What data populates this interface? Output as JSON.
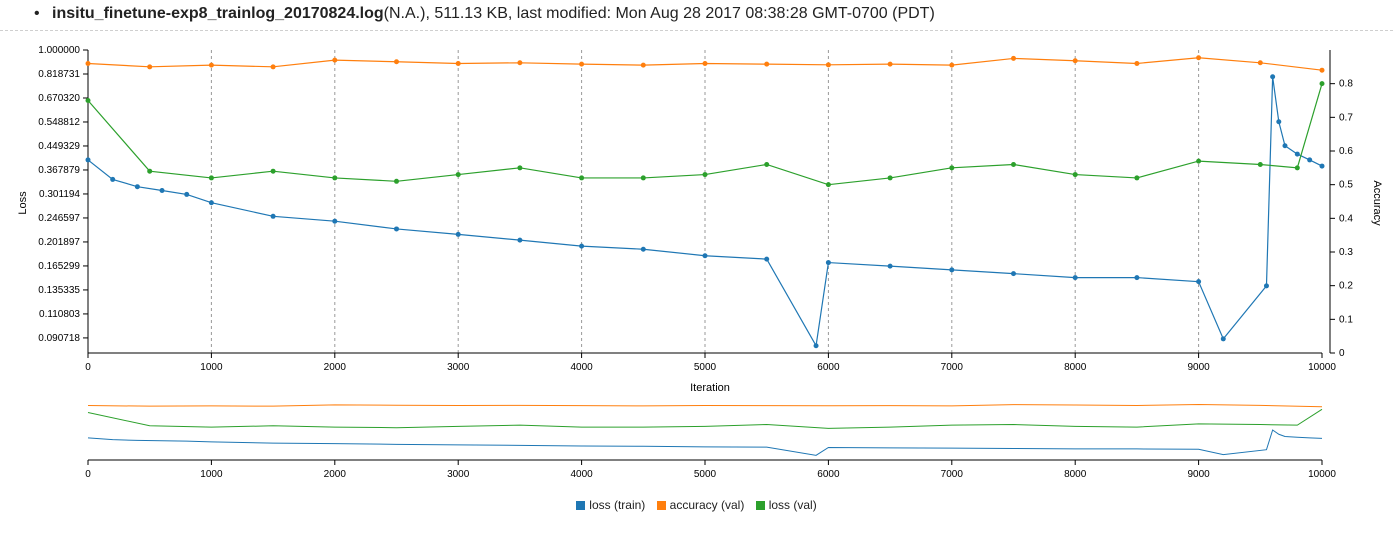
{
  "header": {
    "bullet": "•",
    "filename": "insitu_finetune-exp8_trainlog_20170824.log",
    "meta": "(N.A.), 511.13 KB, last modified: Mon Aug 28 2017 08:38:28 GMT-0700 (PDT)"
  },
  "chart_data": [
    {
      "type": "line",
      "title": "",
      "xlabel": "Iteration",
      "ylabel": "Loss",
      "y2label": "Accuracy",
      "xlim": [
        0,
        10000
      ],
      "x_ticks": [
        0,
        1000,
        2000,
        3000,
        4000,
        5000,
        6000,
        7000,
        8000,
        9000,
        10000
      ],
      "y_scale": "log",
      "ylim": [
        0.08,
        1.0
      ],
      "y_ticks": [
        "1.000000",
        "0.818731",
        "0.670320",
        "0.548812",
        "0.449329",
        "0.367879",
        "0.301194",
        "0.246597",
        "0.201897",
        "0.165299",
        "0.135335",
        "0.110803",
        "0.090718"
      ],
      "y2lim": [
        0,
        0.9
      ],
      "y2_ticks": [
        0,
        0.1,
        0.2,
        0.3,
        0.4,
        0.5,
        0.6,
        0.7,
        0.8
      ],
      "grid": "vertical dashed at x ticks",
      "series": [
        {
          "name": "loss (train)",
          "axis": "left",
          "color": "#1f77b4",
          "x": [
            0,
            200,
            400,
            600,
            800,
            1000,
            1500,
            2000,
            2500,
            3000,
            3500,
            4000,
            4500,
            5000,
            5500,
            5900,
            6000,
            6500,
            7000,
            7500,
            8000,
            8500,
            9000,
            9200,
            9550,
            9600,
            9650,
            9700,
            9800,
            9900,
            10000
          ],
          "values": [
            0.4,
            0.34,
            0.32,
            0.31,
            0.3,
            0.28,
            0.25,
            0.24,
            0.225,
            0.215,
            0.205,
            0.195,
            0.19,
            0.18,
            0.175,
            0.085,
            0.17,
            0.165,
            0.16,
            0.155,
            0.15,
            0.15,
            0.145,
            0.09,
            0.14,
            0.8,
            0.55,
            0.45,
            0.42,
            0.4,
            0.38
          ]
        },
        {
          "name": "accuracy (val)",
          "axis": "right",
          "color": "#ff7f0e",
          "x": [
            0,
            500,
            1000,
            1500,
            2000,
            2500,
            3000,
            3500,
            4000,
            4500,
            5000,
            5500,
            6000,
            6500,
            7000,
            7500,
            8000,
            8500,
            9000,
            9500,
            10000
          ],
          "values": [
            0.86,
            0.85,
            0.855,
            0.85,
            0.87,
            0.865,
            0.86,
            0.862,
            0.858,
            0.855,
            0.86,
            0.858,
            0.856,
            0.858,
            0.855,
            0.875,
            0.868,
            0.86,
            0.877,
            0.862,
            0.84
          ]
        },
        {
          "name": "loss (val)",
          "axis": "right",
          "color": "#2ca02c",
          "x": [
            0,
            500,
            1000,
            1500,
            2000,
            2500,
            3000,
            3500,
            4000,
            4500,
            5000,
            5500,
            6000,
            6500,
            7000,
            7500,
            8000,
            8500,
            9000,
            9500,
            9800,
            10000
          ],
          "values": [
            0.75,
            0.54,
            0.52,
            0.54,
            0.52,
            0.51,
            0.53,
            0.55,
            0.52,
            0.52,
            0.53,
            0.56,
            0.5,
            0.52,
            0.55,
            0.56,
            0.53,
            0.52,
            0.57,
            0.56,
            0.55,
            0.8
          ]
        }
      ]
    },
    {
      "type": "line",
      "title": "",
      "xlabel": "",
      "xlim": [
        0,
        10000
      ],
      "x_ticks": [
        0,
        1000,
        2000,
        3000,
        4000,
        5000,
        6000,
        7000,
        8000,
        9000,
        10000
      ],
      "series": [
        {
          "name": "loss (train)",
          "color": "#1f77b4"
        },
        {
          "name": "accuracy (val)",
          "color": "#ff7f0e"
        },
        {
          "name": "loss (val)",
          "color": "#2ca02c"
        }
      ]
    }
  ],
  "legend": [
    {
      "label": "loss (train)",
      "color": "#1f77b4"
    },
    {
      "label": "accuracy (val)",
      "color": "#ff7f0e"
    },
    {
      "label": "loss (val)",
      "color": "#2ca02c"
    }
  ]
}
